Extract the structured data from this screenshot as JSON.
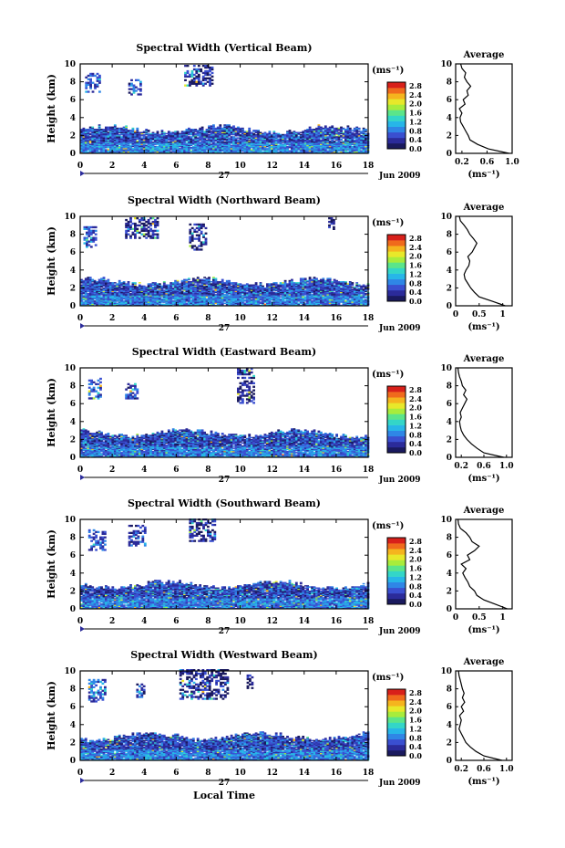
{
  "colorbar": {
    "unit_label": "(ms⁻¹)",
    "ticks": [
      "2.8",
      "2.4",
      "2.0",
      "1.6",
      "1.2",
      "0.8",
      "0.4",
      "0.0"
    ],
    "colors": [
      "#1a1a5e",
      "#2b2b9a",
      "#3a4fd0",
      "#2f86e6",
      "#27b6e8",
      "#33d6c8",
      "#5be58a",
      "#a8ec3c",
      "#e8e82a",
      "#f5b41e",
      "#f06a1c",
      "#d8201a"
    ]
  },
  "xaxis": {
    "ticks": [
      "0",
      "2",
      "4",
      "6",
      "8",
      "10",
      "12",
      "14",
      "16",
      "18"
    ],
    "date_day": "27",
    "date_month": "Jun 2009",
    "label": "Local Time"
  },
  "yaxis": {
    "label": "Height (km)",
    "ticks": [
      "0",
      "2",
      "4",
      "6",
      "8",
      "10"
    ]
  },
  "average": {
    "title": "Average",
    "xlabel": "(ms⁻¹)"
  },
  "chart_data": [
    {
      "type": "heatmap",
      "title": "Spectral Width (Vertical Beam)",
      "xlabel": "",
      "ylabel": "Height (km)",
      "xlim": [
        0,
        18
      ],
      "ylim": [
        0,
        10
      ],
      "clim": [
        0.0,
        2.8
      ],
      "regions": [
        {
          "x": [
            0,
            18
          ],
          "y": [
            0,
            3.0
          ],
          "level": 0.5
        },
        {
          "x": [
            0.3,
            1.2
          ],
          "y": [
            6.8,
            8.8
          ],
          "level": 0.6
        },
        {
          "x": [
            3.0,
            3.8
          ],
          "y": [
            6.5,
            8.2
          ],
          "level": 0.5
        },
        {
          "x": [
            6.5,
            8.3
          ],
          "y": [
            7.5,
            9.8
          ],
          "level": 0.3
        }
      ],
      "average_profile": {
        "xlim": [
          0.1,
          1.0
        ],
        "x_ticks": [
          "0.2",
          "0.6",
          "1.0"
        ],
        "height": [
          0,
          0.5,
          1,
          1.5,
          2,
          2.5,
          3,
          3.5,
          4,
          4.5,
          5,
          5.5,
          6,
          6.5,
          7,
          7.5,
          8,
          8.5,
          9,
          9.5,
          10
        ],
        "width": [
          0.95,
          0.62,
          0.45,
          0.33,
          0.3,
          0.26,
          0.22,
          0.18,
          0.17,
          0.2,
          0.16,
          0.25,
          0.22,
          0.3,
          0.28,
          0.34,
          0.28,
          0.24,
          0.26,
          0.2,
          0.18
        ]
      }
    },
    {
      "type": "heatmap",
      "title": "Spectral Width (Northward Beam)",
      "xlabel": "",
      "ylabel": "Height (km)",
      "xlim": [
        0,
        18
      ],
      "ylim": [
        0,
        10
      ],
      "clim": [
        0.0,
        2.8
      ],
      "regions": [
        {
          "x": [
            0,
            18
          ],
          "y": [
            0,
            3.0
          ],
          "level": 0.5
        },
        {
          "x": [
            0.2,
            1.0
          ],
          "y": [
            6.5,
            8.8
          ],
          "level": 0.6
        },
        {
          "x": [
            2.8,
            4.8
          ],
          "y": [
            7.5,
            9.8
          ],
          "level": 0.3
        },
        {
          "x": [
            6.8,
            7.8
          ],
          "y": [
            6.2,
            9.0
          ],
          "level": 0.3
        },
        {
          "x": [
            15.5,
            15.8
          ],
          "y": [
            8.5,
            9.8
          ],
          "level": 0.3
        }
      ],
      "average_profile": {
        "xlim": [
          0,
          1.2
        ],
        "x_ticks": [
          "0",
          "0.5",
          "1"
        ],
        "height": [
          0,
          0.5,
          1,
          1.5,
          2,
          2.5,
          3,
          3.5,
          4,
          4.5,
          5,
          5.5,
          6,
          6.5,
          7,
          7.5,
          8,
          8.5,
          9,
          9.5,
          10
        ],
        "width": [
          1.05,
          0.78,
          0.5,
          0.4,
          0.32,
          0.26,
          0.2,
          0.18,
          0.22,
          0.28,
          0.3,
          0.26,
          0.35,
          0.4,
          0.45,
          0.38,
          0.3,
          0.25,
          0.18,
          0.1,
          0.08
        ]
      }
    },
    {
      "type": "heatmap",
      "title": "Spectral Width (Eastward Beam)",
      "xlabel": "",
      "ylabel": "Height (km)",
      "xlim": [
        0,
        18
      ],
      "ylim": [
        0,
        10
      ],
      "clim": [
        0.0,
        2.8
      ],
      "regions": [
        {
          "x": [
            0,
            18
          ],
          "y": [
            0,
            3.0
          ],
          "level": 0.5
        },
        {
          "x": [
            0.5,
            1.3
          ],
          "y": [
            6.5,
            8.8
          ],
          "level": 0.6
        },
        {
          "x": [
            2.8,
            3.6
          ],
          "y": [
            6.5,
            8.2
          ],
          "level": 0.5
        },
        {
          "x": [
            9.8,
            10.8
          ],
          "y": [
            6.0,
            9.8
          ],
          "level": 0.3
        }
      ],
      "average_profile": {
        "xlim": [
          0.1,
          1.1
        ],
        "x_ticks": [
          "0.2",
          "0.6",
          "1.0"
        ],
        "height": [
          0,
          0.5,
          1,
          1.5,
          2,
          2.5,
          3,
          3.5,
          4,
          4.5,
          5,
          5.5,
          6,
          6.5,
          7,
          7.5,
          8,
          8.5,
          9,
          9.5,
          10
        ],
        "width": [
          0.95,
          0.6,
          0.48,
          0.38,
          0.3,
          0.24,
          0.2,
          0.18,
          0.17,
          0.2,
          0.18,
          0.22,
          0.26,
          0.3,
          0.24,
          0.28,
          0.22,
          0.2,
          0.17,
          0.15,
          0.14
        ]
      }
    },
    {
      "type": "heatmap",
      "title": "Spectral Width (Southward Beam)",
      "xlabel": "",
      "ylabel": "Height (km)",
      "xlim": [
        0,
        18
      ],
      "ylim": [
        0,
        10
      ],
      "clim": [
        0.0,
        2.8
      ],
      "regions": [
        {
          "x": [
            0,
            18
          ],
          "y": [
            0,
            3.0
          ],
          "level": 0.5
        },
        {
          "x": [
            0.5,
            1.5
          ],
          "y": [
            6.5,
            8.8
          ],
          "level": 0.6
        },
        {
          "x": [
            3.0,
            4.0
          ],
          "y": [
            7.0,
            9.2
          ],
          "level": 0.5
        },
        {
          "x": [
            6.8,
            8.4
          ],
          "y": [
            7.5,
            10.0
          ],
          "level": 0.3
        }
      ],
      "average_profile": {
        "xlim": [
          0,
          1.2
        ],
        "x_ticks": [
          "0",
          "0.5",
          "1"
        ],
        "height": [
          0,
          0.5,
          1,
          1.5,
          2,
          2.5,
          3,
          3.5,
          4,
          4.5,
          5,
          5.5,
          6,
          6.5,
          7,
          7.5,
          8,
          8.5,
          9,
          9.5,
          10
        ],
        "width": [
          1.1,
          0.85,
          0.6,
          0.45,
          0.4,
          0.3,
          0.26,
          0.2,
          0.15,
          0.22,
          0.12,
          0.3,
          0.25,
          0.4,
          0.5,
          0.35,
          0.3,
          0.22,
          0.1,
          0.06,
          0.05
        ]
      }
    },
    {
      "type": "heatmap",
      "title": "Spectral Width (Westward Beam)",
      "xlabel": "Local Time",
      "ylabel": "Height (km)",
      "xlim": [
        0,
        18
      ],
      "ylim": [
        0,
        10
      ],
      "clim": [
        0.0,
        2.8
      ],
      "regions": [
        {
          "x": [
            0,
            18
          ],
          "y": [
            0,
            3.0
          ],
          "level": 0.5
        },
        {
          "x": [
            0.5,
            1.5
          ],
          "y": [
            6.5,
            9.0
          ],
          "level": 0.6
        },
        {
          "x": [
            3.5,
            4.0
          ],
          "y": [
            7.0,
            8.5
          ],
          "level": 0.5
        },
        {
          "x": [
            6.2,
            9.2
          ],
          "y": [
            6.8,
            10.0
          ],
          "level": 0.3
        },
        {
          "x": [
            10.4,
            10.8
          ],
          "y": [
            8.0,
            9.5
          ],
          "level": 0.3
        }
      ],
      "average_profile": {
        "xlim": [
          0.1,
          1.1
        ],
        "x_ticks": [
          "0.2",
          "0.6",
          "1.0"
        ],
        "height": [
          0,
          0.5,
          1,
          1.5,
          2,
          2.5,
          3,
          3.5,
          4,
          4.5,
          5,
          5.5,
          6,
          6.5,
          7,
          7.5,
          8,
          8.5,
          9,
          9.5,
          10
        ],
        "width": [
          0.92,
          0.6,
          0.46,
          0.36,
          0.28,
          0.24,
          0.2,
          0.16,
          0.18,
          0.2,
          0.17,
          0.24,
          0.2,
          0.26,
          0.22,
          0.25,
          0.22,
          0.2,
          0.18,
          0.16,
          0.15
        ]
      }
    }
  ]
}
